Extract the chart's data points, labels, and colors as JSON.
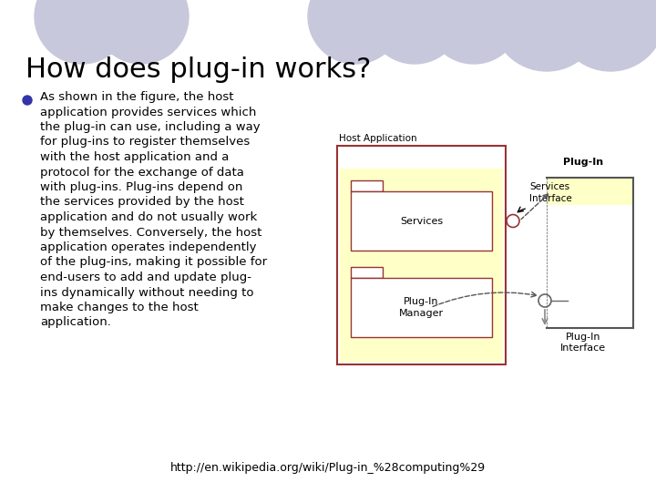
{
  "title": "How does plug-in works?",
  "title_fontsize": 22,
  "bg_color": "#ffffff",
  "circle_color": "#c8c8dc",
  "bullet_text_lines": [
    "As shown in the figure, the host",
    "application provides services which",
    "the plug-in can use, including a way",
    "for plug-ins to register themselves",
    "with the host application and a",
    "protocol for the exchange of data",
    "with plug-ins. Plug-ins depend on",
    "the services provided by the host",
    "application and do not usually work",
    "by themselves. Conversely, the host",
    "application operates independently",
    "of the plug-ins, making it possible for",
    "end-users to add and update plug-",
    "ins dynamically without needing to",
    "make changes to the host",
    "application."
  ],
  "bullet_fontsize": 9.5,
  "footnote": "http://en.wikipedia.org/wiki/Plug-in_%28computing%29",
  "footnote_fontsize": 9
}
